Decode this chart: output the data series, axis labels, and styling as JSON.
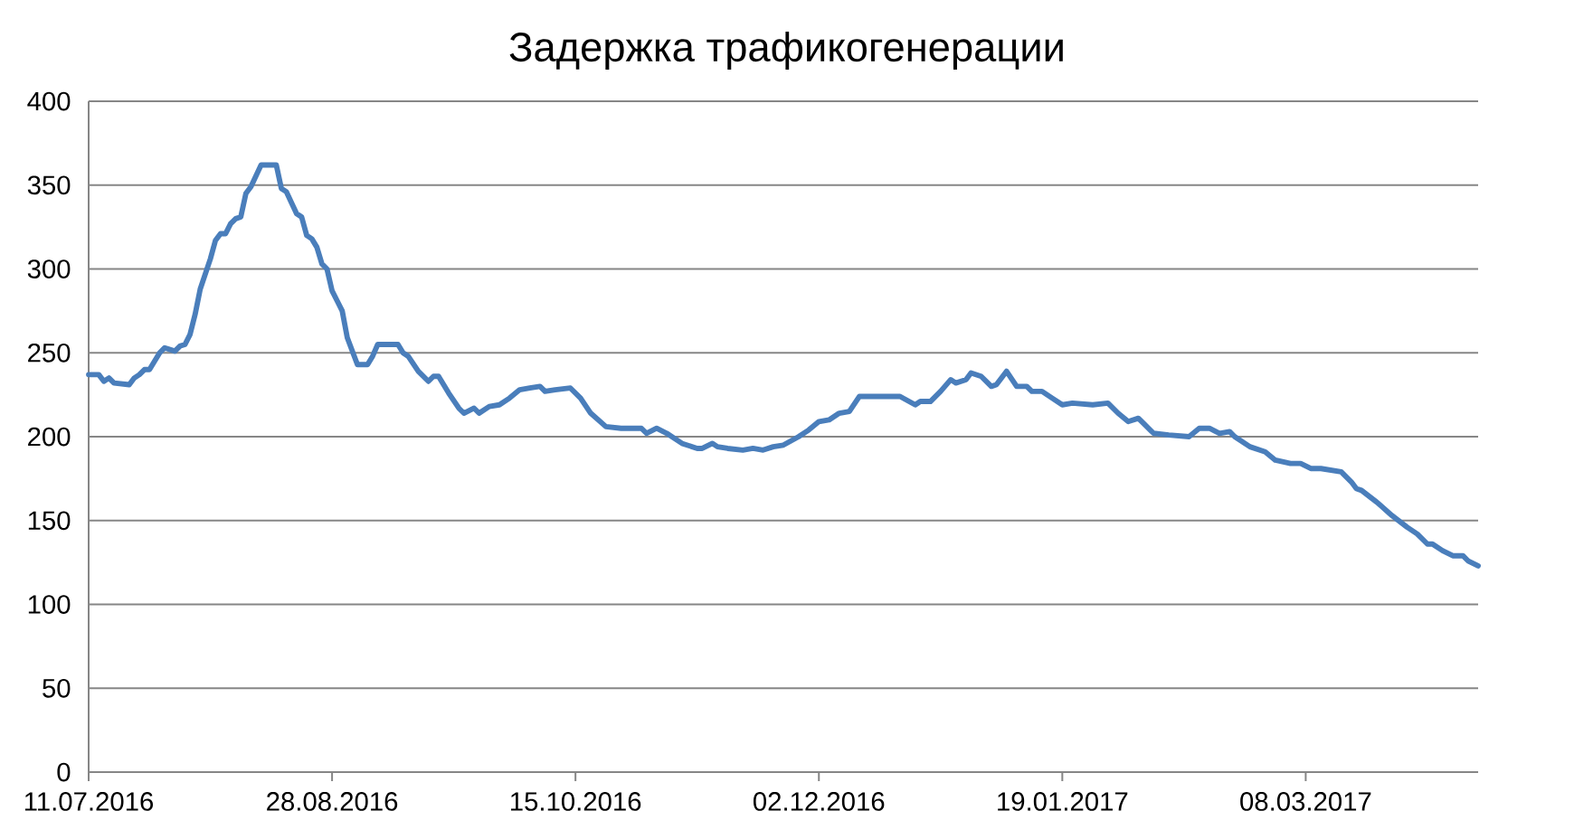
{
  "chart_data": {
    "type": "line",
    "title": "Задержка трафикогенерации",
    "color": "#4a7ebb",
    "grid": "y",
    "xlim": [
      "2016-07-11",
      "2017-04-11"
    ],
    "ylim": [
      0,
      400
    ],
    "xticks": [
      {
        "value": "2016-07-11",
        "label": "11.07.2016"
      },
      {
        "value": "2016-08-28",
        "label": "28.08.2016"
      },
      {
        "value": "2016-10-15",
        "label": "15.10.2016"
      },
      {
        "value": "2016-12-02",
        "label": "02.12.2016"
      },
      {
        "value": "2017-01-19",
        "label": "19.01.2017"
      },
      {
        "value": "2017-03-08",
        "label": "08.03.2017"
      }
    ],
    "yticks": [
      0,
      50,
      100,
      150,
      200,
      250,
      300,
      350,
      400
    ],
    "x": [
      "2016-07-11",
      "2016-07-13",
      "2016-07-14",
      "2016-07-15",
      "2016-07-16",
      "2016-07-19",
      "2016-07-20",
      "2016-07-21",
      "2016-07-22",
      "2016-07-23",
      "2016-07-24",
      "2016-07-25",
      "2016-07-26",
      "2016-07-28",
      "2016-07-29",
      "2016-07-30",
      "2016-07-31",
      "2016-08-01",
      "2016-08-02",
      "2016-08-04",
      "2016-08-05",
      "2016-08-06",
      "2016-08-07",
      "2016-08-08",
      "2016-08-09",
      "2016-08-10",
      "2016-08-11",
      "2016-08-12",
      "2016-08-14",
      "2016-08-17",
      "2016-08-18",
      "2016-08-19",
      "2016-08-21",
      "2016-08-22",
      "2016-08-23",
      "2016-08-24",
      "2016-08-25",
      "2016-08-26",
      "2016-08-27",
      "2016-08-28",
      "2016-08-29",
      "2016-08-30",
      "2016-08-31",
      "2016-09-02",
      "2016-09-04",
      "2016-09-05",
      "2016-09-06",
      "2016-09-10",
      "2016-09-11",
      "2016-09-12",
      "2016-09-14",
      "2016-09-16",
      "2016-09-17",
      "2016-09-18",
      "2016-09-20",
      "2016-09-22",
      "2016-09-23",
      "2016-09-25",
      "2016-09-26",
      "2016-09-28",
      "2016-09-30",
      "2016-10-02",
      "2016-10-04",
      "2016-10-06",
      "2016-10-08",
      "2016-10-09",
      "2016-10-11",
      "2016-10-14",
      "2016-10-16",
      "2016-10-18",
      "2016-10-21",
      "2016-10-24",
      "2016-10-28",
      "2016-10-29",
      "2016-10-31",
      "2016-11-02",
      "2016-11-05",
      "2016-11-08",
      "2016-11-09",
      "2016-11-11",
      "2016-11-12",
      "2016-11-14",
      "2016-11-17",
      "2016-11-19",
      "2016-11-21",
      "2016-11-23",
      "2016-11-25",
      "2016-11-28",
      "2016-11-30",
      "2016-12-02",
      "2016-12-04",
      "2016-12-06",
      "2016-12-08",
      "2016-12-10",
      "2016-12-18",
      "2016-12-21",
      "2016-12-22",
      "2016-12-24",
      "2016-12-26",
      "2016-12-28",
      "2016-12-29",
      "2016-12-31",
      "2017-01-01",
      "2017-01-03",
      "2017-01-05",
      "2017-01-06",
      "2017-01-08",
      "2017-01-10",
      "2017-01-12",
      "2017-01-13",
      "2017-01-15",
      "2017-01-17",
      "2017-01-19",
      "2017-01-21",
      "2017-01-25",
      "2017-01-28",
      "2017-01-30",
      "2017-02-01",
      "2017-02-03",
      "2017-02-04",
      "2017-02-06",
      "2017-02-09",
      "2017-02-13",
      "2017-02-15",
      "2017-02-17",
      "2017-02-19",
      "2017-02-21",
      "2017-02-22",
      "2017-02-25",
      "2017-02-28",
      "2017-03-02",
      "2017-03-05",
      "2017-03-07",
      "2017-03-09",
      "2017-03-11",
      "2017-03-15",
      "2017-03-17",
      "2017-03-18",
      "2017-03-19",
      "2017-03-22",
      "2017-03-25",
      "2017-03-28",
      "2017-03-30",
      "2017-04-01",
      "2017-04-02",
      "2017-04-04",
      "2017-04-06",
      "2017-04-08",
      "2017-04-09",
      "2017-04-11"
    ],
    "values": [
      237,
      237,
      233,
      235,
      232,
      231,
      235,
      237,
      240,
      240,
      245,
      250,
      253,
      251,
      254,
      255,
      261,
      273,
      288,
      306,
      317,
      321,
      321,
      327,
      330,
      331,
      345,
      349,
      362,
      362,
      348,
      346,
      333,
      331,
      320,
      318,
      313,
      303,
      300,
      287,
      281,
      275,
      259,
      243,
      243,
      248,
      255,
      255,
      250,
      248,
      239,
      233,
      236,
      236,
      226,
      217,
      214,
      217,
      214,
      218,
      219,
      223,
      228,
      229,
      230,
      227,
      228,
      229,
      223,
      214,
      206,
      205,
      205,
      202,
      205,
      202,
      196,
      193,
      193,
      196,
      194,
      193,
      192,
      193,
      192,
      194,
      195,
      200,
      204,
      209,
      210,
      214,
      215,
      224,
      224,
      219,
      221,
      221,
      227,
      234,
      232,
      234,
      238,
      236,
      230,
      231,
      239,
      230,
      230,
      227,
      227,
      223,
      219,
      220,
      219,
      220,
      214,
      209,
      211,
      208,
      202,
      201,
      200,
      205,
      205,
      202,
      203,
      200,
      194,
      191,
      186,
      184,
      184,
      181,
      181,
      179,
      173,
      169,
      168,
      161,
      153,
      146,
      142,
      136,
      136,
      132,
      129,
      129,
      126,
      123
    ]
  }
}
